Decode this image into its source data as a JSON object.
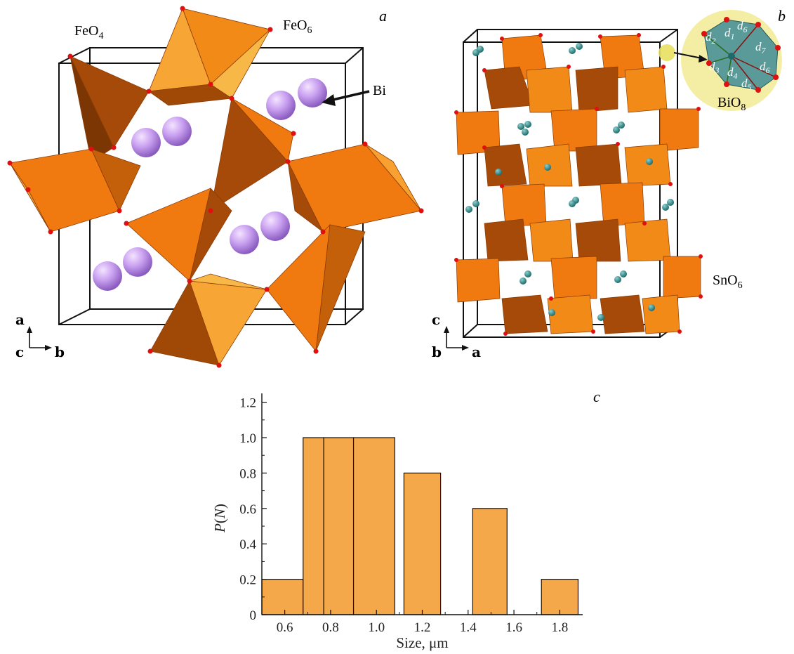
{
  "panel_a": {
    "letter": "a",
    "labels": {
      "feo4": "FeO",
      "feo4_sub": "4",
      "feo6": "FeO",
      "feo6_sub": "6",
      "bi": "Bi"
    },
    "axes": {
      "up": "a",
      "out": "c",
      "right": "b"
    },
    "colors": {
      "polyhedron": "#f07a10",
      "polyhedron_dark": "#a54a08",
      "polyhedron_light": "#f8b040",
      "bi_atom": "#c9a0f0",
      "oxygen": "#e01010"
    }
  },
  "panel_b": {
    "letter": "b",
    "labels": {
      "sno6": "SnO",
      "sno6_sub": "6",
      "bio8": "BiO",
      "bio8_sub": "8"
    },
    "inset_distances": [
      {
        "base": "d",
        "sub": "1"
      },
      {
        "base": "d",
        "sub": "2"
      },
      {
        "base": "d",
        "sub": "3"
      },
      {
        "base": "d",
        "sub": "4"
      },
      {
        "base": "d",
        "sub": "5"
      },
      {
        "base": "d",
        "sub": "6"
      },
      {
        "base": "d",
        "sub": "6"
      },
      {
        "base": "d",
        "sub": "7"
      }
    ],
    "axes": {
      "up": "c",
      "out": "b",
      "right": "a"
    },
    "colors": {
      "atom": "#2e8a8a",
      "inset_bg": "#f3ec9a",
      "inset_poly": "#5a9a98"
    }
  },
  "panel_c": {
    "letter": "c"
  },
  "chart_data": {
    "type": "bar",
    "x_centers": [
      0.6,
      0.8,
      0.9,
      1.0,
      1.2,
      1.5,
      1.8
    ],
    "widths": [
      0.2,
      0.2,
      0.1,
      0.2,
      0.1,
      0.1,
      0.2
    ],
    "values": [
      0.2,
      1.0,
      1.0,
      1.0,
      0.8,
      0.6,
      0.2
    ],
    "bin_edges": [
      [
        0.5,
        0.68
      ],
      [
        0.68,
        0.77
      ],
      [
        0.77,
        0.9
      ],
      [
        0.9,
        1.08
      ],
      [
        1.12,
        1.28
      ],
      [
        1.42,
        1.57
      ],
      [
        1.72,
        1.88
      ]
    ],
    "title": "",
    "xlabel": "Size, μm",
    "ylabel": "P(N)",
    "ylabel_base": "P",
    "ylabel_var": "N",
    "xlim": [
      0.5,
      1.9
    ],
    "ylim": [
      0,
      1.25
    ],
    "xticks": [
      "0.6",
      "0.8",
      "1.0",
      "1.2",
      "1.4",
      "1.6",
      "1.8"
    ],
    "xtick_values": [
      0.6,
      0.8,
      1.0,
      1.2,
      1.4,
      1.6,
      1.8
    ],
    "yticks": [
      "0",
      "0.2",
      "0.4",
      "0.6",
      "0.8",
      "1.0",
      "1.2"
    ],
    "ytick_values": [
      0,
      0.2,
      0.4,
      0.6,
      0.8,
      1.0,
      1.2
    ],
    "bar_color": "#f5a84a",
    "grid": false
  }
}
